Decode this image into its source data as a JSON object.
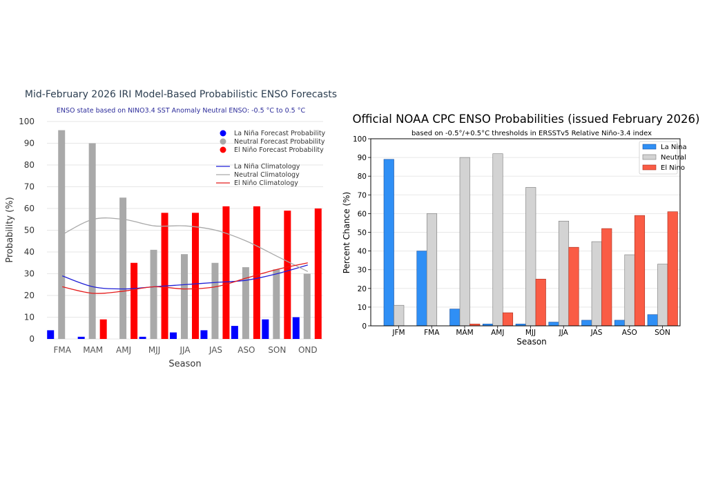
{
  "chart_data": [
    {
      "type": "bar",
      "title": "Mid-February 2026 IRI Model-Based Probabilistic ENSO Forecasts",
      "subtitle": "ENSO state based on NINO3.4 SST Anomaly Neutral ENSO: -0.5 °C to 0.5 °C",
      "xlabel": "Season",
      "ylabel": "Probability (%)",
      "ylim": [
        0,
        100
      ],
      "yticks": [
        0,
        10,
        20,
        30,
        40,
        50,
        60,
        70,
        80,
        90,
        100
      ],
      "categories": [
        "FMA",
        "MAM",
        "AMJ",
        "MJJ",
        "JJA",
        "JAS",
        "ASO",
        "SON",
        "OND"
      ],
      "series": [
        {
          "name": "La Niña Forecast Probability",
          "color": "#0000ff",
          "values": [
            4,
            1,
            0,
            1,
            3,
            4,
            6,
            9,
            10
          ]
        },
        {
          "name": "Neutral Forecast Probability",
          "color": "#a9a9a9",
          "values": [
            96,
            90,
            65,
            41,
            39,
            35,
            33,
            32,
            30
          ]
        },
        {
          "name": "El Niño Forecast Probability",
          "color": "#ff0000",
          "values": [
            0,
            9,
            35,
            58,
            58,
            61,
            61,
            59,
            60
          ]
        }
      ],
      "climatology": [
        {
          "name": "La Niña Climatology",
          "color": "#1f1fd6",
          "values": [
            29,
            24,
            23,
            24,
            25,
            26,
            27,
            30,
            34
          ]
        },
        {
          "name": "Neutral Climatology",
          "color": "#a9a9a9",
          "values": [
            48,
            55,
            55,
            52,
            52,
            50,
            45,
            38,
            31
          ]
        },
        {
          "name": "El Niño Climatology",
          "color": "#e41a1a",
          "values": [
            24,
            21,
            22,
            24,
            23,
            24,
            28,
            32,
            35
          ]
        }
      ],
      "legend_position": "top-right"
    },
    {
      "type": "bar",
      "title": "Official NOAA CPC ENSO Probabilities (issued February 2026)",
      "subtitle": "based on -0.5°/+0.5°C thresholds in ERSSTv5 Relative Niño-3.4 index",
      "xlabel": "Season",
      "ylabel": "Percent Chance (%)",
      "ylim": [
        0,
        100
      ],
      "yticks": [
        0,
        10,
        20,
        30,
        40,
        50,
        60,
        70,
        80,
        90,
        100
      ],
      "categories": [
        "JFM",
        "FMA",
        "MAM",
        "AMJ",
        "MJJ",
        "JJA",
        "JAS",
        "ASO",
        "SON"
      ],
      "series": [
        {
          "name": "La Nina",
          "color": "#2f8ff5",
          "values": [
            89,
            40,
            9,
            1,
            1,
            2,
            3,
            3,
            6
          ]
        },
        {
          "name": "Neutral",
          "color": "#d3d3d3",
          "values": [
            11,
            60,
            90,
            92,
            74,
            56,
            45,
            38,
            33
          ]
        },
        {
          "name": "El Nino",
          "color": "#fa5c45",
          "values": [
            0,
            0,
            1,
            7,
            25,
            42,
            52,
            59,
            61
          ]
        }
      ],
      "legend_position": "top-right"
    }
  ]
}
